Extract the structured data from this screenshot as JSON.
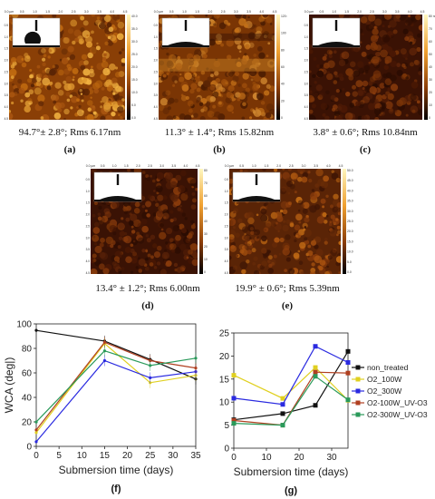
{
  "panels": [
    {
      "label": "(a)",
      "caption": "94.7°± 2.8°; Rms 6.17nm",
      "tone": "warm",
      "scalebar_ticks": [
        "40.0 nm",
        "35.0",
        "30.0",
        "25.0",
        "20.0",
        "15.0",
        "10.0",
        "5.0",
        "0.0"
      ],
      "ticks": [
        "0.0 µm",
        "0.5",
        "1.0",
        "1.5",
        "2.0",
        "2.5",
        "3.0",
        "3.5",
        "4.0",
        "4.5"
      ]
    },
    {
      "label": "(b)",
      "caption": "11.3° ± 1.4°; Rms 15.82nm",
      "tone": "banded",
      "scalebar_ticks": [
        "120 nm",
        "100",
        "80",
        "60",
        "40",
        "20",
        "0"
      ],
      "ticks": [
        "0.0 µm",
        "0.5",
        "1.0",
        "1.5",
        "2.0",
        "2.5",
        "3.0",
        "3.5",
        "4.0",
        "4.5"
      ]
    },
    {
      "label": "(c)",
      "caption": "3.8° ± 0.6°; Rms 10.84nm",
      "tone": "dark",
      "scalebar_ticks": [
        "80 nm",
        "70",
        "60",
        "50",
        "40",
        "30",
        "20",
        "10",
        "0"
      ],
      "ticks": [
        "0.0 µm",
        "0.5",
        "1.0",
        "1.5",
        "2.0",
        "2.5",
        "3.0",
        "3.5",
        "4.0",
        "4.5"
      ]
    },
    {
      "label": "(d)",
      "caption": "13.4° ± 1.2°; Rms 6.00nm",
      "tone": "dark",
      "scalebar_ticks": [
        "80",
        "70",
        "60",
        "50",
        "40",
        "30",
        "20",
        "10",
        "0"
      ],
      "ticks": [
        "0.0 µm",
        "0.5",
        "1.0",
        "1.5",
        "2.0",
        "2.5",
        "3.0",
        "3.5",
        "4.0",
        "4.5"
      ]
    },
    {
      "label": "(e)",
      "caption": "19.9° ± 0.6°; Rms 5.39nm",
      "tone": "medium",
      "scalebar_ticks": [
        "50.0 nm",
        "45.0",
        "40.0",
        "35.0",
        "30.0",
        "25.0",
        "20.0",
        "15.0",
        "10.0",
        "5.0",
        "0.0"
      ],
      "ticks": [
        "0.0 µm",
        "0.5",
        "1.0",
        "1.5",
        "2.0",
        "2.5",
        "3.0",
        "3.5",
        "4.0",
        "4.5"
      ]
    }
  ],
  "chart_data": [
    {
      "type": "line",
      "panel_label": "(f)",
      "xlabel": "Submersion time (days)",
      "ylabel": "WCA (deg|)",
      "x": [
        0,
        15,
        25,
        35
      ],
      "xlim": [
        0,
        35
      ],
      "xticks": [
        0,
        5,
        10,
        15,
        20,
        25,
        30,
        35
      ],
      "ylim": [
        0,
        100
      ],
      "yticks": [
        0,
        20,
        40,
        60,
        80,
        100
      ],
      "series": [
        {
          "color": "#111111",
          "values": [
            94.7,
            86,
            71,
            55
          ]
        },
        {
          "color": "#e0d020",
          "values": [
            11.3,
            84,
            52,
            58
          ]
        },
        {
          "color": "#2a2ae0",
          "values": [
            3.8,
            70,
            56,
            61
          ]
        },
        {
          "color": "#b04020",
          "values": [
            13.4,
            85,
            70,
            64
          ]
        },
        {
          "color": "#2a9a5a",
          "values": [
            19.9,
            78,
            66,
            72
          ]
        }
      ]
    },
    {
      "type": "line",
      "panel_label": "(g)",
      "xlabel": "Submersion time (days)",
      "ylabel": "Roughness Rms(sq) (nm)",
      "x": [
        0,
        15,
        25,
        35
      ],
      "xlim": [
        0,
        35
      ],
      "xticks": [
        0,
        10,
        20,
        30
      ],
      "ylim": [
        0,
        25
      ],
      "yticks": [
        0,
        5,
        10,
        15,
        20,
        25
      ],
      "series": [
        {
          "name": "non_treated",
          "color": "#111111",
          "values": [
            6.17,
            7.5,
            9.3,
            21
          ]
        },
        {
          "name": "O2_100W",
          "color": "#e0d020",
          "values": [
            15.82,
            10.8,
            17.5,
            10.4
          ]
        },
        {
          "name": "O2_300W",
          "color": "#2a2ae0",
          "values": [
            10.84,
            9.5,
            22.1,
            18.6
          ]
        },
        {
          "name": "O2-100W_UV-O3",
          "color": "#b04020",
          "values": [
            6.0,
            5.0,
            16.5,
            16.3
          ]
        },
        {
          "name": "O2-300W_UV-O3",
          "color": "#2a9a5a",
          "values": [
            5.39,
            5.0,
            15.6,
            10.5
          ]
        }
      ]
    }
  ]
}
